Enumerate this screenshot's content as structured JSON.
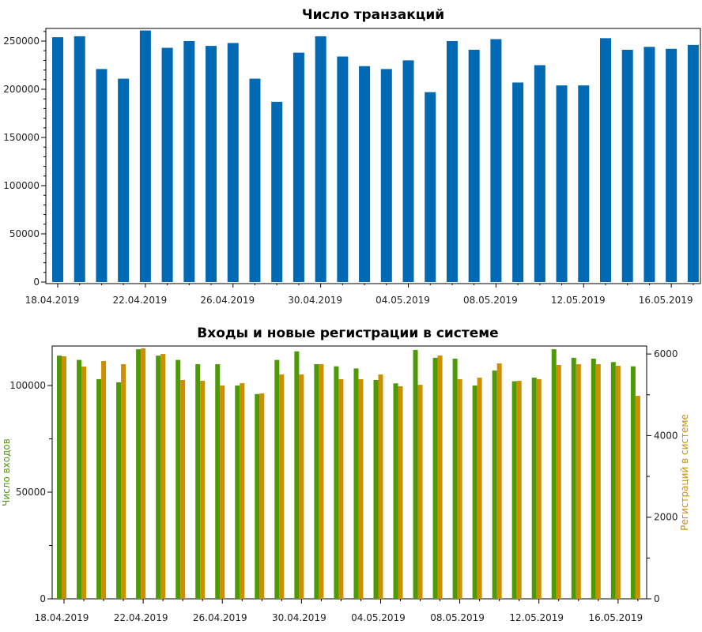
{
  "chart_data": [
    {
      "type": "bar",
      "title": "Число транзакций",
      "categories": [
        "18.04.2019",
        "19.04.2019",
        "20.04.2019",
        "21.04.2019",
        "22.04.2019",
        "23.04.2019",
        "24.04.2019",
        "25.04.2019",
        "26.04.2019",
        "27.04.2019",
        "28.04.2019",
        "29.04.2019",
        "30.04.2019",
        "01.05.2019",
        "02.05.2019",
        "03.05.2019",
        "04.05.2019",
        "05.05.2019",
        "06.05.2019",
        "07.05.2019",
        "08.05.2019",
        "09.05.2019",
        "10.05.2019",
        "11.05.2019",
        "12.05.2019",
        "13.05.2019",
        "14.05.2019",
        "15.05.2019",
        "16.05.2019",
        "17.05.2019"
      ],
      "x_tick_labels": [
        "18.04.2019",
        "22.04.2019",
        "26.04.2019",
        "30.04.2019",
        "04.05.2019",
        "08.05.2019",
        "12.05.2019",
        "16.05.2019"
      ],
      "y_tick_labels": [
        "0",
        "50000",
        "100000",
        "150000",
        "200000",
        "250000"
      ],
      "values": [
        254000,
        255000,
        221000,
        211000,
        261000,
        243000,
        250000,
        245000,
        248000,
        211000,
        187000,
        238000,
        255000,
        234000,
        224000,
        221000,
        230000,
        197000,
        250000,
        241000,
        252000,
        207000,
        225000,
        204000,
        204000,
        253000,
        241000,
        244000,
        242000,
        246000
      ],
      "ylim": [
        0,
        260000
      ],
      "color": "#0069b4",
      "xlabel": "",
      "ylabel": ""
    },
    {
      "type": "bar",
      "title": "Входы и новые регистрации в системе",
      "categories": [
        "18.04.2019",
        "19.04.2019",
        "20.04.2019",
        "21.04.2019",
        "22.04.2019",
        "23.04.2019",
        "24.04.2019",
        "25.04.2019",
        "26.04.2019",
        "27.04.2019",
        "28.04.2019",
        "29.04.2019",
        "30.04.2019",
        "01.05.2019",
        "02.05.2019",
        "03.05.2019",
        "04.05.2019",
        "05.05.2019",
        "06.05.2019",
        "07.05.2019",
        "08.05.2019",
        "09.05.2019",
        "10.05.2019",
        "11.05.2019",
        "12.05.2019",
        "13.05.2019",
        "14.05.2019",
        "15.05.2019",
        "16.05.2019",
        "17.05.2019"
      ],
      "x_tick_labels": [
        "18.04.2019",
        "22.04.2019",
        "26.04.2019",
        "30.04.2019",
        "04.05.2019",
        "08.05.2019",
        "12.05.2019",
        "16.05.2019"
      ],
      "y_left": {
        "label": "Число входов",
        "tick_labels": [
          "0",
          "50000",
          "100000"
        ],
        "ylim": [
          0,
          118000
        ],
        "color": "#4e9a06"
      },
      "y_right": {
        "label": "Регистраций в системе",
        "tick_labels": [
          "0",
          "2000",
          "4000",
          "6000"
        ],
        "ylim": [
          0,
          6150
        ],
        "color": "#cc8f00"
      },
      "series": [
        {
          "name": "Число входов",
          "axis": "left",
          "color": "#4e9a06",
          "values": [
            114000,
            112000,
            103000,
            101500,
            117000,
            114000,
            112000,
            110000,
            110000,
            100000,
            96000,
            112000,
            116000,
            110000,
            109000,
            108000,
            102600,
            101000,
            116700,
            113000,
            112600,
            100000,
            107000,
            102000,
            103700,
            117000,
            113000,
            112600,
            111000,
            109000
          ]
        },
        {
          "name": "Регистраций в системе",
          "axis": "right",
          "color": "#cc8f00",
          "values": [
            5944,
            5692,
            5828,
            5750,
            6137,
            6000,
            5363,
            5343,
            5227,
            5285,
            5034,
            5498,
            5498,
            5750,
            5382,
            5382,
            5498,
            5208,
            5246,
            5963,
            5382,
            5420,
            5769,
            5343,
            5382,
            5731,
            5750,
            5750,
            5711,
            4975
          ]
        }
      ]
    }
  ]
}
